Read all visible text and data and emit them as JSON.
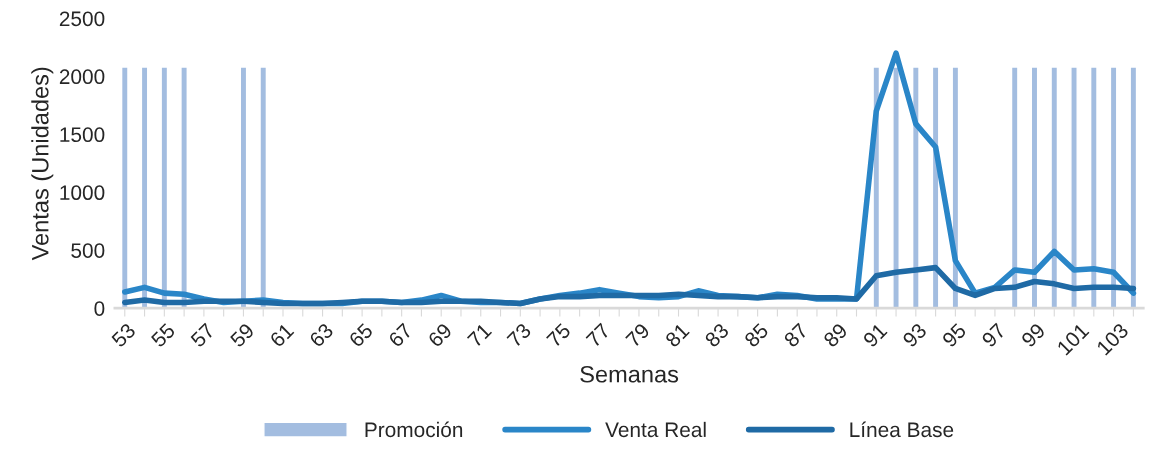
{
  "chart_data": {
    "type": "line",
    "xlabel": "Semanas",
    "ylabel": "Ventas (Unidades)",
    "categories": [
      "53",
      null,
      "55",
      null,
      "57",
      null,
      "59",
      null,
      "61",
      null,
      "63",
      null,
      "65",
      null,
      "67",
      null,
      "69",
      null,
      "71",
      null,
      "73",
      null,
      "75",
      null,
      "77",
      null,
      "79",
      null,
      "81",
      null,
      "83",
      null,
      "85",
      null,
      "87",
      null,
      "89",
      null,
      "91",
      null,
      "93",
      null,
      "95",
      null,
      "97",
      null,
      "99",
      null,
      "101",
      null,
      "103",
      null
    ],
    "series": [
      {
        "name": "Promoción",
        "type": "bar",
        "color": "#a3bde0",
        "values": [
          2080,
          2080,
          2080,
          2080,
          null,
          null,
          2080,
          2080,
          null,
          null,
          null,
          null,
          null,
          null,
          null,
          null,
          null,
          null,
          null,
          null,
          null,
          null,
          null,
          null,
          null,
          null,
          null,
          null,
          null,
          null,
          null,
          null,
          null,
          null,
          null,
          null,
          null,
          null,
          2080,
          2080,
          2080,
          2080,
          2080,
          null,
          null,
          2080,
          2080,
          2080,
          2080,
          2080,
          2080,
          2080
        ]
      },
      {
        "name": "Venta Real",
        "color": "#2a86c8",
        "values": [
          140,
          180,
          130,
          120,
          80,
          50,
          60,
          70,
          50,
          40,
          40,
          40,
          60,
          60,
          50,
          70,
          110,
          60,
          50,
          50,
          40,
          80,
          110,
          130,
          160,
          130,
          100,
          90,
          100,
          150,
          110,
          100,
          90,
          120,
          110,
          80,
          80,
          80,
          1700,
          2200,
          1590,
          1390,
          410,
          130,
          180,
          330,
          310,
          490,
          330,
          340,
          310,
          130
        ]
      },
      {
        "name": "Línea Base",
        "color": "#1f6aa5",
        "values": [
          50,
          70,
          50,
          50,
          60,
          60,
          60,
          50,
          40,
          40,
          40,
          50,
          60,
          60,
          50,
          50,
          60,
          60,
          60,
          50,
          40,
          80,
          100,
          100,
          110,
          110,
          110,
          110,
          120,
          110,
          100,
          100,
          90,
          100,
          100,
          90,
          90,
          80,
          280,
          310,
          330,
          350,
          170,
          110,
          170,
          180,
          230,
          210,
          170,
          180,
          180,
          170
        ]
      }
    ],
    "ylim": [
      0,
      2500
    ],
    "yticks": [
      0,
      500,
      1000,
      1500,
      2000,
      2500
    ],
    "grid": false,
    "legend": "bottom",
    "line_style": "solid",
    "marker": "none"
  }
}
